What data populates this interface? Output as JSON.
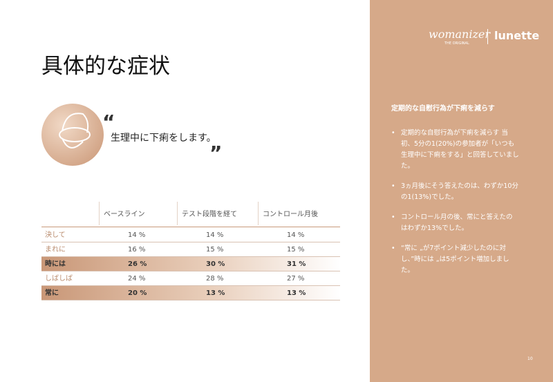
{
  "header": {
    "title": "具体的な症状"
  },
  "quote": {
    "open": "“",
    "text": "生理中に下痢をします。",
    "close": "”"
  },
  "table": {
    "columns": [
      "ベースライン",
      "テスト段階を経て",
      "コントロール月後"
    ],
    "rows": [
      [
        "決して",
        "14 %",
        "14 %",
        "14 %"
      ],
      [
        "まれに",
        "16 %",
        "15 %",
        "15 %"
      ],
      [
        "時には",
        "26 %",
        "30 %",
        "31 %"
      ],
      [
        "しばしば",
        "24 %",
        "28 %",
        "27 %"
      ],
      [
        "常に",
        "20 %",
        "13 %",
        "13 %"
      ]
    ]
  },
  "sidebar": {
    "logo_left": "womanizer",
    "logo_tagline": "THE ORIGINAL",
    "logo_right": "lunette",
    "heading": "定期的な自慰行為が下痢を減らす",
    "bullets": [
      {
        "lines": [
          "定期的な自慰行為が下痢を減らす 当",
          "初、5分の1(20%)の参加者が「いつも",
          "生理中に下痢をする」と回答していまし",
          "た。"
        ]
      },
      {
        "lines": [
          "3ヵ月後にそう答えたのは、わずか10分",
          "の1(13%)でした。"
        ]
      },
      {
        "lines": [
          "コントロール月の後、常にと答えたの",
          "はわずか13%でした。"
        ]
      },
      {
        "lines": [
          "“常に „が7ポイント減少したのに対",
          "し、”時には „は5ポイント増加しまし",
          "た。"
        ]
      }
    ],
    "bullet_marker": "•",
    "page_number": "10"
  }
}
